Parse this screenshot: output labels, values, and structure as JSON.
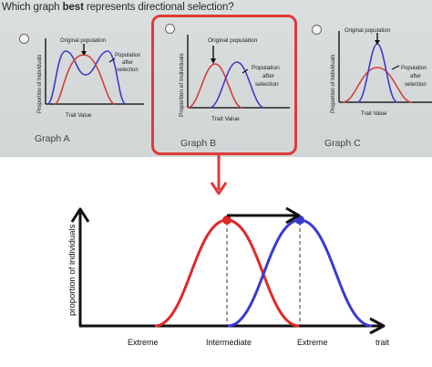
{
  "question": {
    "prefix": "Which graph ",
    "emphasis": "best",
    "suffix": " represents directional selection?"
  },
  "options": [
    {
      "id": "A",
      "label": "Graph A",
      "original": "Original population",
      "after_line1": "Population",
      "after_line2": "after",
      "after_line3": "selection",
      "ylabel": "Proportion of Individuals",
      "xlabel": "Trait Value"
    },
    {
      "id": "B",
      "label": "Graph B",
      "original": "Original population",
      "after_line1": "Population",
      "after_line2": "after",
      "after_line3": "selection",
      "ylabel": "Proportion of Individuals",
      "xlabel": "Trait Value"
    },
    {
      "id": "C",
      "label": "Graph C",
      "original": "Original population",
      "after_line1": "Population",
      "after_line2": "after",
      "after_line3": "selection",
      "ylabel": "Proportion of Individuals",
      "xlabel": "Trait Value"
    }
  ],
  "highlight_color": "#e03a3a",
  "diagram": {
    "ylabel": "proportion of individuals",
    "xlabel": "trait",
    "tick_labels": [
      "Extreme",
      "Intermediate",
      "Extreme"
    ],
    "original_color": "#e02828",
    "shifted_color": "#3a3ad0"
  }
}
